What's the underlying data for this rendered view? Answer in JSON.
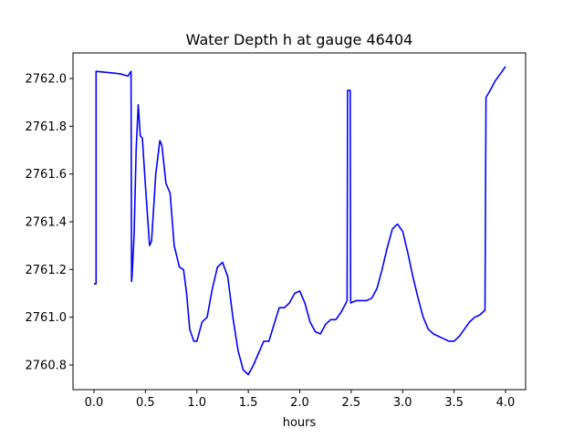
{
  "chart_data": {
    "type": "line",
    "title": "Water Depth h at gauge 46404",
    "xlabel": "hours",
    "ylabel": "",
    "xlim": [
      -0.204,
      4.195
    ],
    "ylim": [
      2760.697,
      2762.107
    ],
    "xticks": [
      "0.0",
      "0.5",
      "1.0",
      "1.5",
      "2.0",
      "2.5",
      "3.0",
      "3.5",
      "4.0"
    ],
    "yticks": [
      "2760.8",
      "2761.0",
      "2761.2",
      "2761.4",
      "2761.6",
      "2761.8",
      "2762.0"
    ],
    "grid": false,
    "series": [
      {
        "name": "h",
        "color": "#0000ff",
        "x": [
          0.0,
          0.02,
          0.02,
          0.25,
          0.33,
          0.36,
          0.365,
          0.37,
          0.39,
          0.41,
          0.43,
          0.45,
          0.47,
          0.5,
          0.54,
          0.56,
          0.6,
          0.64,
          0.66,
          0.7,
          0.74,
          0.78,
          0.83,
          0.87,
          0.9,
          0.93,
          0.97,
          1.0,
          1.05,
          1.1,
          1.15,
          1.2,
          1.25,
          1.3,
          1.35,
          1.4,
          1.45,
          1.5,
          1.55,
          1.6,
          1.65,
          1.7,
          1.75,
          1.8,
          1.85,
          1.9,
          1.95,
          2.0,
          2.05,
          2.1,
          2.15,
          2.2,
          2.25,
          2.3,
          2.35,
          2.4,
          2.45,
          2.46,
          2.465,
          2.49,
          2.495,
          2.55,
          2.6,
          2.65,
          2.7,
          2.75,
          2.8,
          2.85,
          2.9,
          2.95,
          3.0,
          3.05,
          3.1,
          3.15,
          3.2,
          3.25,
          3.3,
          3.35,
          3.4,
          3.45,
          3.5,
          3.55,
          3.6,
          3.65,
          3.7,
          3.75,
          3.8,
          3.81,
          3.85,
          3.9,
          3.95,
          4.0
        ],
        "y": [
          2761.14,
          2761.14,
          2762.03,
          2762.02,
          2762.01,
          2762.03,
          2761.15,
          2761.17,
          2761.35,
          2761.7,
          2761.89,
          2761.76,
          2761.75,
          2761.55,
          2761.3,
          2761.32,
          2761.6,
          2761.74,
          2761.72,
          2761.56,
          2761.52,
          2761.3,
          2761.21,
          2761.2,
          2761.1,
          2760.95,
          2760.9,
          2760.9,
          2760.98,
          2761.0,
          2761.12,
          2761.21,
          2761.23,
          2761.17,
          2761.0,
          2760.86,
          2760.78,
          2760.76,
          2760.8,
          2760.85,
          2760.9,
          2760.9,
          2760.97,
          2761.04,
          2761.04,
          2761.06,
          2761.1,
          2761.11,
          2761.06,
          2760.98,
          2760.94,
          2760.93,
          2760.97,
          2760.99,
          2760.99,
          2761.02,
          2761.06,
          2761.07,
          2761.95,
          2761.95,
          2761.06,
          2761.07,
          2761.07,
          2761.07,
          2761.08,
          2761.12,
          2761.2,
          2761.29,
          2761.37,
          2761.39,
          2761.36,
          2761.27,
          2761.17,
          2761.08,
          2761.0,
          2760.95,
          2760.93,
          2760.92,
          2760.91,
          2760.9,
          2760.9,
          2760.92,
          2760.95,
          2760.98,
          2761.0,
          2761.01,
          2761.03,
          2761.92,
          2761.95,
          2761.99,
          2762.02,
          2762.05
        ]
      }
    ]
  }
}
